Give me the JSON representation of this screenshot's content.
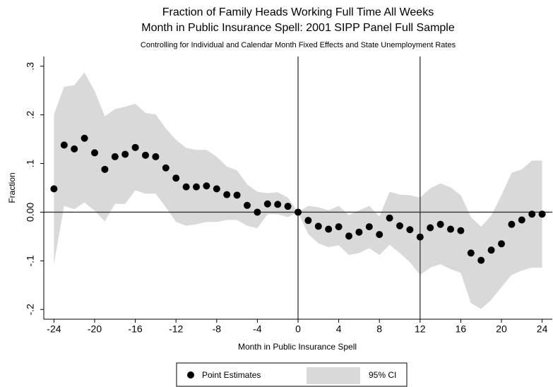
{
  "chart_data": {
    "type": "scatter",
    "title": "Fraction of Family Heads Working Full Time All Weeks",
    "title2": "Month in Public Insurance Spell: 2001 SIPP Panel Full Sample",
    "subtitle": "Controlling for Individual and Calendar Month Fixed Effects and State Unemployment Rates",
    "xlabel": "Month in Public Insurance Spell",
    "ylabel": "Fraction",
    "x": [
      -24,
      -23,
      -22,
      -21,
      -20,
      -19,
      -18,
      -17,
      -16,
      -15,
      -14,
      -13,
      -12,
      -11,
      -10,
      -9,
      -8,
      -7,
      -6,
      -5,
      -4,
      -3,
      -2,
      -1,
      0,
      1,
      2,
      3,
      4,
      5,
      6,
      7,
      8,
      9,
      10,
      11,
      12,
      13,
      14,
      15,
      16,
      17,
      18,
      19,
      20,
      21,
      22,
      23,
      24
    ],
    "series": [
      {
        "name": "Point Estimates",
        "color": "#000000",
        "values": [
          0.048,
          0.138,
          0.13,
          0.152,
          0.122,
          0.088,
          0.114,
          0.119,
          0.133,
          0.117,
          0.114,
          0.091,
          0.07,
          0.052,
          0.052,
          0.054,
          0.048,
          0.036,
          0.035,
          0.014,
          0.0,
          0.017,
          0.016,
          0.012,
          0,
          -0.017,
          -0.029,
          -0.035,
          -0.03,
          -0.049,
          -0.041,
          -0.03,
          -0.046,
          -0.012,
          -0.028,
          -0.036,
          -0.051,
          -0.032,
          -0.025,
          -0.035,
          -0.038,
          -0.084,
          -0.099,
          -0.078,
          -0.065,
          -0.025,
          -0.016,
          -0.004,
          -0.004
        ]
      }
    ],
    "band": {
      "name": "95% CI",
      "color": "#d9d9d9",
      "upper": [
        0.201,
        0.258,
        0.261,
        0.287,
        0.249,
        0.197,
        0.212,
        0.217,
        0.223,
        0.204,
        0.201,
        0.172,
        0.149,
        0.132,
        0.128,
        0.128,
        0.114,
        0.094,
        0.086,
        0.057,
        0.042,
        0.039,
        0.041,
        0.03,
        0,
        0.013,
        0.01,
        0.004,
        0.013,
        -0.006,
        0.004,
        0.013,
        -0.009,
        0.042,
        0.036,
        0.035,
        0.03,
        0.049,
        0.059,
        0.051,
        0.035,
        -0.01,
        -0.03,
        -0.007,
        0.035,
        0.081,
        0.088,
        0.106,
        0.106
      ],
      "lower": [
        -0.106,
        0.013,
        0.006,
        0.02,
        0.003,
        -0.019,
        0.017,
        0.017,
        0.045,
        0.038,
        0.038,
        0.01,
        -0.02,
        -0.028,
        -0.025,
        -0.02,
        -0.02,
        -0.016,
        -0.016,
        -0.028,
        -0.033,
        -0.004,
        -0.004,
        -0.01,
        0,
        -0.045,
        -0.064,
        -0.072,
        -0.068,
        -0.088,
        -0.084,
        -0.074,
        -0.088,
        -0.067,
        -0.084,
        -0.103,
        -0.129,
        -0.114,
        -0.107,
        -0.117,
        -0.125,
        -0.187,
        -0.199,
        -0.18,
        -0.154,
        -0.129,
        -0.12,
        -0.114,
        -0.114
      ]
    },
    "xlim": [
      -25,
      25
    ],
    "ylim": [
      -0.22,
      0.32
    ],
    "xticks": [
      -24,
      -20,
      -16,
      -12,
      -8,
      -4,
      0,
      4,
      8,
      12,
      16,
      20,
      24
    ],
    "yticks": [
      {
        "value": 0.3,
        "label": ".3"
      },
      {
        "value": 0.2,
        "label": ".2"
      },
      {
        "value": 0.1,
        "label": ".1"
      },
      {
        "value": 0,
        "label": "0.00"
      },
      {
        "value": -0.1,
        "label": "-.1"
      },
      {
        "value": -0.2,
        "label": "-.2"
      }
    ],
    "vlines": [
      0,
      12
    ],
    "hline": 0,
    "grid": false
  }
}
